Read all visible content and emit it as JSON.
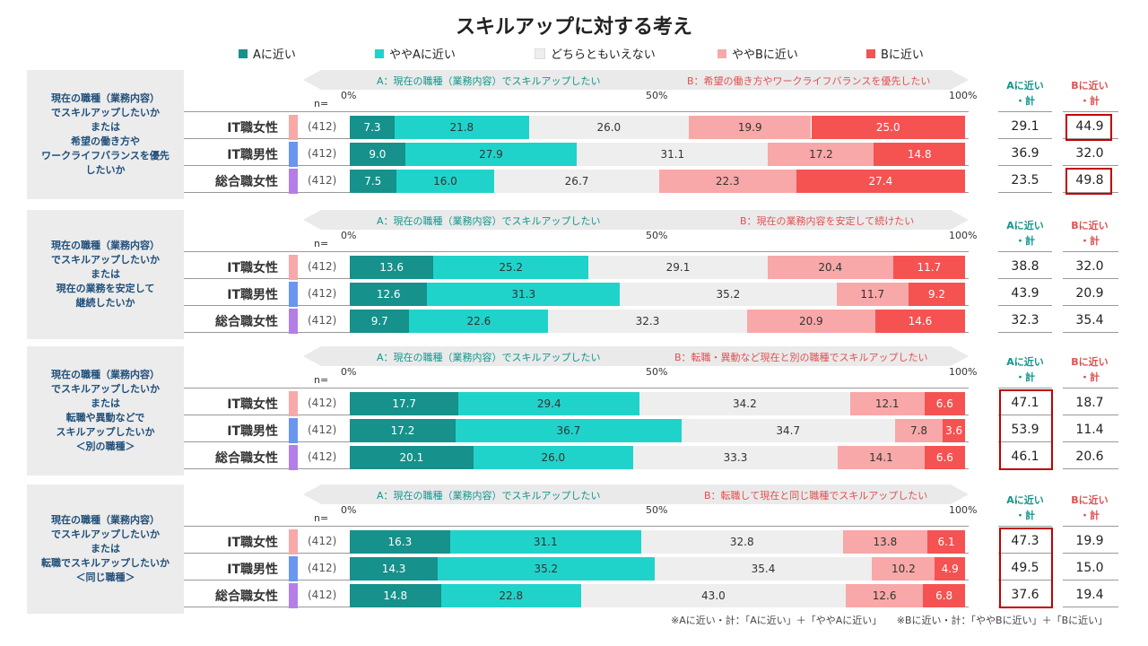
{
  "chart_data": {
    "type": "bar",
    "stacked": "horizontal-100%",
    "title": "スキルアップに対する考え",
    "legend": [
      "Aに近い",
      "ややAに近い",
      "どちらともいえない",
      "ややBに近い",
      "Bに近い"
    ],
    "series_colors": [
      "#16918b",
      "#20d3ca",
      "#eeeeee",
      "#f8a8a8",
      "#f55252"
    ],
    "segment_text_colors": [
      "#ffffff",
      "#333333",
      "#333333",
      "#333333",
      "#ffffff"
    ],
    "n_label": "n=",
    "axis_ticks": [
      "0%",
      "50%",
      "100%"
    ],
    "total_header_a": "Aに近い\n・計",
    "total_header_b": "Bに近い\n・計",
    "row_colors": [
      "#f8a8a8",
      "#6a96f0",
      "#b47ee8"
    ],
    "questions": [
      {
        "label": "現在の職種（業務内容）\nでスキルアップしたいか\nまたは\n希望の働き方や\nワークライフバランスを優先\nしたいか",
        "a_label": "A：現在の職種（業務内容）でスキルアップしたい",
        "b_label": "B：希望の働き方やワークライフバランスを優先したい",
        "rows": [
          {
            "name": "IT職女性",
            "n": "(412)",
            "values": [
              7.3,
              21.8,
              26.0,
              19.9,
              25.0
            ],
            "total_a": "29.1",
            "total_b": "44.9",
            "hl_b": true,
            "hl_a": false
          },
          {
            "name": "IT職男性",
            "n": "(412)",
            "values": [
              9.0,
              27.9,
              31.1,
              17.2,
              14.8
            ],
            "total_a": "36.9",
            "total_b": "32.0",
            "hl_b": false,
            "hl_a": false
          },
          {
            "name": "総合職女性",
            "n": "(412)",
            "values": [
              7.5,
              16.0,
              26.7,
              22.3,
              27.4
            ],
            "total_a": "23.5",
            "total_b": "49.8",
            "hl_b": true,
            "hl_a": false
          }
        ]
      },
      {
        "label": "現在の職種（業務内容）\nでスキルアップしたいか\nまたは\n現在の業務を安定して\n継続したいか",
        "a_label": "A：現在の職種（業務内容）でスキルアップしたい",
        "b_label": "B：現在の業務内容を安定して続けたい",
        "rows": [
          {
            "name": "IT職女性",
            "n": "(412)",
            "values": [
              13.6,
              25.2,
              29.1,
              20.4,
              11.7
            ],
            "total_a": "38.8",
            "total_b": "32.0",
            "hl_b": false,
            "hl_a": false
          },
          {
            "name": "IT職男性",
            "n": "(412)",
            "values": [
              12.6,
              31.3,
              35.2,
              11.7,
              9.2
            ],
            "total_a": "43.9",
            "total_b": "20.9",
            "hl_b": false,
            "hl_a": false
          },
          {
            "name": "総合職女性",
            "n": "(412)",
            "values": [
              9.7,
              22.6,
              32.3,
              20.9,
              14.6
            ],
            "total_a": "32.3",
            "total_b": "35.4",
            "hl_b": false,
            "hl_a": false
          }
        ]
      },
      {
        "label": "現在の職種（業務内容）\nでスキルアップしたいか\nまたは\n転職や異動などで\nスキルアップしたいか\n＜別の職種＞",
        "a_label": "A：現在の職種（業務内容）でスキルアップしたい",
        "b_label": "B：転職・異動など現在と別の職種でスキルアップしたい",
        "rows": [
          {
            "name": "IT職女性",
            "n": "(412)",
            "values": [
              17.7,
              29.4,
              34.2,
              12.1,
              6.6
            ],
            "total_a": "47.1",
            "total_b": "18.7",
            "hl_b": false,
            "hl_a": true
          },
          {
            "name": "IT職男性",
            "n": "(412)",
            "values": [
              17.2,
              36.7,
              34.7,
              7.8,
              3.6
            ],
            "total_a": "53.9",
            "total_b": "11.4",
            "hl_b": false,
            "hl_a": true
          },
          {
            "name": "総合職女性",
            "n": "(412)",
            "values": [
              20.1,
              26.0,
              33.3,
              14.1,
              6.6
            ],
            "total_a": "46.1",
            "total_b": "20.6",
            "hl_b": false,
            "hl_a": true
          }
        ]
      },
      {
        "label": "現在の職種（業務内容）\nでスキルアップしたいか\nまたは\n転職でスキルアップしたいか\n＜同じ職種＞",
        "a_label": "A：現在の職種（業務内容）でスキルアップしたい",
        "b_label": "B：転職して現在と同じ職種でスキルアップしたい",
        "rows": [
          {
            "name": "IT職女性",
            "n": "(412)",
            "values": [
              16.3,
              31.1,
              32.8,
              13.8,
              6.1
            ],
            "total_a": "47.3",
            "total_b": "19.9",
            "hl_b": false,
            "hl_a": true
          },
          {
            "name": "IT職男性",
            "n": "(412)",
            "values": [
              14.3,
              35.2,
              35.4,
              10.2,
              4.9
            ],
            "total_a": "49.5",
            "total_b": "15.0",
            "hl_b": false,
            "hl_a": true
          },
          {
            "name": "総合職女性",
            "n": "(412)",
            "values": [
              14.8,
              22.8,
              43.0,
              12.6,
              6.8
            ],
            "total_a": "37.6",
            "total_b": "19.4",
            "hl_b": false,
            "hl_a": true
          }
        ]
      }
    ],
    "footnote": "※Aに近い・計：「Aに近い」＋「ややAに近い」　　※Bに近い・計：「ややBに近い」＋「Bに近い」"
  }
}
